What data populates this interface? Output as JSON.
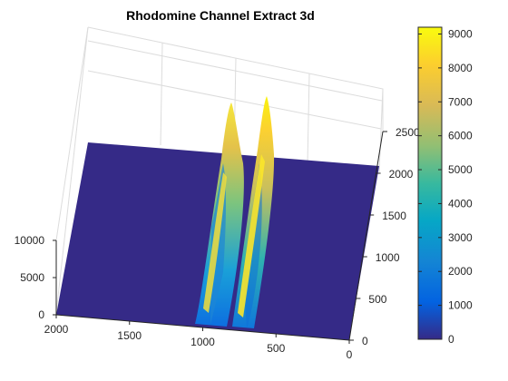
{
  "chart_data": {
    "type": "surface",
    "title": "Rhodomine Channel Extract 3d",
    "xlabel": "",
    "ylabel": "",
    "zlabel": "",
    "x_axis": {
      "ticks": [
        "2000",
        "1500",
        "1000",
        "500",
        "0"
      ],
      "range": [
        0,
        2000
      ]
    },
    "y_axis": {
      "ticks": [
        "0",
        "500",
        "1000",
        "1500",
        "2000",
        "2500"
      ],
      "range": [
        0,
        2500
      ]
    },
    "z_axis": {
      "ticks": [
        "0",
        "5000",
        "10000"
      ],
      "range": [
        0,
        15000
      ]
    },
    "grid": true,
    "colormap": "parula",
    "colorbar": {
      "location": "right",
      "range": [
        0,
        9200
      ],
      "ticks": [
        "0",
        "1000",
        "2000",
        "3000",
        "4000",
        "5000",
        "6000",
        "7000",
        "8000",
        "9000"
      ]
    },
    "baseline_value": 0,
    "ridges": [
      {
        "x_center": 950,
        "y_extent": [
          0,
          2100
        ],
        "peak_z": 8500,
        "peak_y": 1750
      },
      {
        "x_center": 750,
        "y_extent": [
          0,
          2100
        ],
        "peak_z": 9200,
        "peak_y": 1800
      }
    ]
  }
}
